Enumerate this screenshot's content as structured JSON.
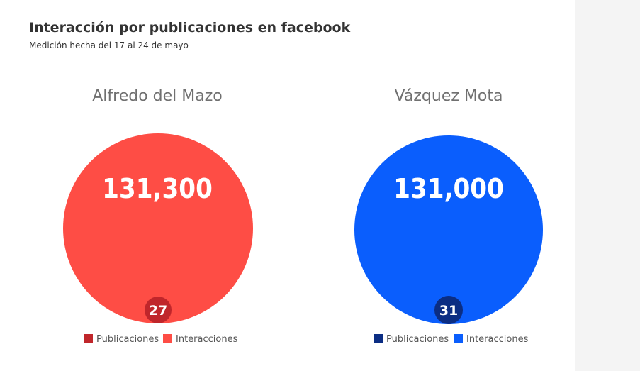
{
  "header": {
    "title": "Interacción por publicaciones en facebook",
    "subtitle": "Medición hecha del 17 al 24 de mayo"
  },
  "chart_data": [
    {
      "type": "bubble",
      "title": "Alfredo del Mazo",
      "series": [
        {
          "name": "Publicaciones",
          "value": 27,
          "color": "#c0262b"
        },
        {
          "name": "Interacciones",
          "value": 131300,
          "value_label": "131,300",
          "color": "#fe4d45"
        }
      ]
    },
    {
      "type": "bubble",
      "title": "Vázquez Mota",
      "series": [
        {
          "name": "Publicaciones",
          "value": 31,
          "color": "#0b2d83"
        },
        {
          "name": "Interacciones",
          "value": 131000,
          "value_label": "131,000",
          "color": "#0a5efd"
        }
      ]
    }
  ]
}
